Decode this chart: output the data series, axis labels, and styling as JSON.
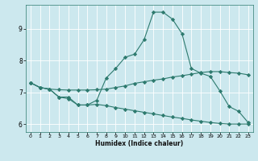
{
  "xlabel": "Humidex (Indice chaleur)",
  "background_color": "#cce8ee",
  "line_color": "#2d7a6e",
  "grid_color": "#b0d8e0",
  "xlim": [
    -0.5,
    23.5
  ],
  "ylim": [
    5.75,
    9.75
  ],
  "yticks": [
    6,
    7,
    8,
    9
  ],
  "xticks": [
    0,
    1,
    2,
    3,
    4,
    5,
    6,
    7,
    8,
    9,
    10,
    11,
    12,
    13,
    14,
    15,
    16,
    17,
    18,
    19,
    20,
    21,
    22,
    23
  ],
  "line1_x": [
    0,
    1,
    2,
    3,
    4,
    5,
    6,
    7,
    8,
    9,
    10,
    11,
    12,
    13,
    14,
    15,
    16,
    17,
    18,
    19,
    20,
    21,
    22,
    23
  ],
  "line1_y": [
    7.3,
    7.15,
    7.1,
    6.85,
    6.8,
    6.6,
    6.6,
    6.75,
    7.45,
    7.75,
    8.1,
    8.2,
    8.65,
    9.52,
    9.52,
    9.3,
    8.85,
    7.75,
    7.6,
    7.5,
    7.05,
    6.55,
    6.4,
    6.05
  ],
  "line2_x": [
    0,
    1,
    2,
    3,
    4,
    5,
    6,
    7,
    8,
    9,
    10,
    11,
    12,
    13,
    14,
    15,
    16,
    17,
    18,
    19,
    20,
    21,
    22,
    23
  ],
  "line2_y": [
    7.3,
    7.15,
    7.1,
    7.08,
    7.07,
    7.07,
    7.07,
    7.08,
    7.1,
    7.15,
    7.2,
    7.28,
    7.33,
    7.38,
    7.42,
    7.48,
    7.52,
    7.57,
    7.62,
    7.65,
    7.65,
    7.62,
    7.6,
    7.55
  ],
  "line3_x": [
    0,
    1,
    2,
    3,
    4,
    5,
    6,
    7,
    8,
    9,
    10,
    11,
    12,
    13,
    14,
    15,
    16,
    17,
    18,
    19,
    20,
    21,
    22,
    23
  ],
  "line3_y": [
    7.3,
    7.15,
    7.1,
    6.85,
    6.85,
    6.6,
    6.6,
    6.62,
    6.58,
    6.52,
    6.47,
    6.42,
    6.37,
    6.32,
    6.27,
    6.22,
    6.18,
    6.13,
    6.09,
    6.05,
    6.02,
    6.0,
    6.0,
    6.0
  ]
}
